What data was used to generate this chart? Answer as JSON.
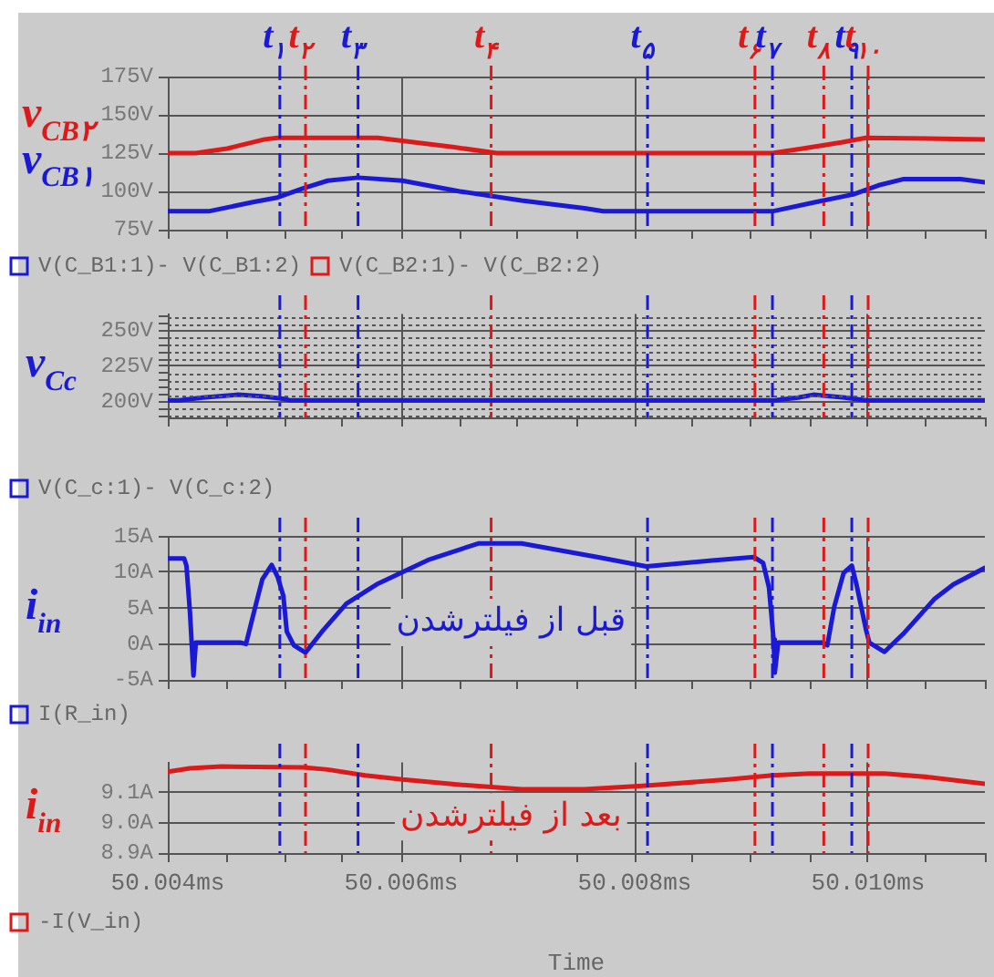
{
  "chart_data": [
    {
      "type": "line",
      "annotations": [
        "v$_{CB۲}$",
        "v$_{CB۱}$"
      ],
      "xlim": [
        50.004,
        50.011
      ],
      "xticks": [
        {
          "value": 50.004,
          "label": null
        },
        {
          "value": 50.0045,
          "label": null
        },
        {
          "value": 50.005,
          "label": null
        },
        {
          "value": 50.0055,
          "label": null
        },
        {
          "value": 50.006,
          "label": null
        },
        {
          "value": 50.0065,
          "label": null
        },
        {
          "value": 50.007,
          "label": null
        },
        {
          "value": 50.0075,
          "label": null
        },
        {
          "value": 50.008,
          "label": null
        },
        {
          "value": 50.0085,
          "label": null
        },
        {
          "value": 50.009,
          "label": null
        },
        {
          "value": 50.0095,
          "label": null
        },
        {
          "value": 50.01,
          "label": null
        },
        {
          "value": 50.0105,
          "label": null
        },
        {
          "value": 50.011,
          "label": null
        }
      ],
      "ylim": [
        75,
        175
      ],
      "yticks": [
        {
          "value": 75,
          "label": "75V"
        },
        {
          "value": 100,
          "label": "100V"
        },
        {
          "value": 125,
          "label": "125V"
        },
        {
          "value": 150,
          "label": "150V"
        },
        {
          "value": 175,
          "label": "175V"
        }
      ],
      "grid": true,
      "legend": "bottom",
      "tick_labels": "y",
      "series": [
        {
          "name": "V(C_B1:1)- V(C_B1:2)",
          "color": "#1a1ad6",
          "x": [
            50.004,
            50.00435,
            50.00473,
            50.00494,
            50.00516,
            50.00537,
            50.00563,
            50.00601,
            50.0065,
            50.00703,
            50.00757,
            50.00773,
            50.00918,
            50.00955,
            50.00987,
            50.01009,
            50.0103,
            50.01079,
            50.011
          ],
          "values": [
            87,
            87,
            93,
            96,
            102,
            107,
            109,
            107,
            100,
            94,
            89,
            87,
            87,
            93,
            98,
            104,
            108,
            108,
            106
          ]
        },
        {
          "name": "V(C_B2:1)- V(C_B2:2)",
          "color": "#dd1a1a",
          "x": [
            50.004,
            50.00424,
            50.00451,
            50.00483,
            50.00494,
            50.0058,
            50.00612,
            50.00644,
            50.00682,
            50.00918,
            50.00944,
            50.00977,
            50.00998,
            50.011
          ],
          "values": [
            125,
            125,
            128,
            134,
            135,
            135,
            132,
            129,
            125,
            125,
            128,
            132,
            135,
            134
          ]
        }
      ],
      "ref_lines": [
        {
          "axis": "x",
          "value": 50.00496,
          "label": "t$_{۱}$",
          "color": "#1a1ad6",
          "line_style": "dashed"
        },
        {
          "axis": "x",
          "value": 50.00518,
          "label": "t$_{۲}$",
          "color": "#dd1a1a",
          "line_style": "dashed"
        },
        {
          "axis": "x",
          "value": 50.00563,
          "label": "t$_{۳}$",
          "color": "#1a1ad6",
          "line_style": "dashed"
        },
        {
          "axis": "x",
          "value": 50.00677,
          "label": "t$_{۴}$",
          "color": "#dd1a1a",
          "line_style": "dashed"
        },
        {
          "axis": "x",
          "value": 50.00811,
          "label": "t$_{۵}$",
          "color": "#1a1ad6",
          "line_style": "dashed"
        },
        {
          "axis": "x",
          "value": 50.00903,
          "label": "t$_{۶}$",
          "color": "#dd1a1a",
          "line_style": "dashed"
        },
        {
          "axis": "x",
          "value": 50.00918,
          "label": "t$_{۷}$",
          "color": "#1a1ad6",
          "line_style": "dashed"
        },
        {
          "axis": "x",
          "value": 50.00962,
          "label": "t$_{۸}$",
          "color": "#dd1a1a",
          "line_style": "dashed"
        },
        {
          "axis": "x",
          "value": 50.00986,
          "label": "t$_{۹}$",
          "color": "#1a1ad6",
          "line_style": "dashed"
        },
        {
          "axis": "x",
          "value": 50.01,
          "label": "t$_{۱۰}$",
          "color": "#dd1a1a",
          "line_style": "dashed"
        }
      ]
    },
    {
      "type": "line",
      "ylabel": "v$_{Cc}$",
      "xlim": [
        50.004,
        50.011
      ],
      "xticks": [
        {
          "value": 50.004,
          "label": null
        },
        {
          "value": 50.0045,
          "label": null
        },
        {
          "value": 50.005,
          "label": null
        },
        {
          "value": 50.0055,
          "label": null
        },
        {
          "value": 50.006,
          "label": null
        },
        {
          "value": 50.0065,
          "label": null
        },
        {
          "value": 50.007,
          "label": null
        },
        {
          "value": 50.0075,
          "label": null
        },
        {
          "value": 50.008,
          "label": null
        },
        {
          "value": 50.0085,
          "label": null
        },
        {
          "value": 50.009,
          "label": null
        },
        {
          "value": 50.0095,
          "label": null
        },
        {
          "value": 50.01,
          "label": null
        },
        {
          "value": 50.0105,
          "label": null
        },
        {
          "value": 50.011,
          "label": null
        }
      ],
      "ylim": [
        189,
        262
      ],
      "yticks": [
        {
          "value": 190,
          "label": null
        },
        {
          "value": 195,
          "label": null
        },
        {
          "value": 200,
          "label": "200V"
        },
        {
          "value": 205,
          "label": null
        },
        {
          "value": 210,
          "label": null
        },
        {
          "value": 215,
          "label": null
        },
        {
          "value": 220,
          "label": null
        },
        {
          "value": 225,
          "label": "225V"
        },
        {
          "value": 230,
          "label": null
        },
        {
          "value": 235,
          "label": null
        },
        {
          "value": 240,
          "label": null
        },
        {
          "value": 245,
          "label": null
        },
        {
          "value": 250,
          "label": "250V"
        },
        {
          "value": 255,
          "label": null
        },
        {
          "value": 260,
          "label": null
        }
      ],
      "grid": true,
      "legend": "bottom",
      "tick_labels": "y",
      "series": [
        {
          "name": "V(C_c:1)- V(C_c:2)",
          "color": "#1a1ad6",
          "x": [
            50.004,
            50.0041,
            50.0043,
            50.0046,
            50.0048,
            50.005,
            50.00505,
            50.0092,
            50.0094,
            50.00953,
            50.0098,
            50.00998,
            50.011
          ],
          "values": [
            201,
            201,
            203,
            205,
            204,
            202,
            201,
            201,
            203,
            205,
            203,
            201,
            201
          ]
        }
      ],
      "ref_lines": [
        {
          "axis": "x",
          "value": 50.00496,
          "color": "#1a1ad6",
          "line_style": "dashed"
        },
        {
          "axis": "x",
          "value": 50.00518,
          "color": "#dd1a1a",
          "line_style": "dashed"
        },
        {
          "axis": "x",
          "value": 50.00563,
          "color": "#1a1ad6",
          "line_style": "dashed"
        },
        {
          "axis": "x",
          "value": 50.00677,
          "color": "#dd1a1a",
          "line_style": "dashed"
        },
        {
          "axis": "x",
          "value": 50.00811,
          "color": "#1a1ad6",
          "line_style": "dashed"
        },
        {
          "axis": "x",
          "value": 50.00903,
          "color": "#dd1a1a",
          "line_style": "dashed"
        },
        {
          "axis": "x",
          "value": 50.00918,
          "color": "#1a1ad6",
          "line_style": "dashed"
        },
        {
          "axis": "x",
          "value": 50.00962,
          "color": "#dd1a1a",
          "line_style": "dashed"
        },
        {
          "axis": "x",
          "value": 50.00986,
          "color": "#1a1ad6",
          "line_style": "dashed"
        },
        {
          "axis": "x",
          "value": 50.01,
          "color": "#dd1a1a",
          "line_style": "dashed"
        }
      ]
    },
    {
      "type": "line",
      "ylabel": "i$_{in}$",
      "annotations": [
        "قبل از فیلترشدن"
      ],
      "xlim": [
        50.004,
        50.011
      ],
      "xticks": [
        {
          "value": 50.004,
          "label": null
        },
        {
          "value": 50.0045,
          "label": null
        },
        {
          "value": 50.005,
          "label": null
        },
        {
          "value": 50.0055,
          "label": null
        },
        {
          "value": 50.006,
          "label": null
        },
        {
          "value": 50.0065,
          "label": null
        },
        {
          "value": 50.007,
          "label": null
        },
        {
          "value": 50.0075,
          "label": null
        },
        {
          "value": 50.008,
          "label": null
        },
        {
          "value": 50.0085,
          "label": null
        },
        {
          "value": 50.009,
          "label": null
        },
        {
          "value": 50.0095,
          "label": null
        },
        {
          "value": 50.01,
          "label": null
        },
        {
          "value": 50.0105,
          "label": null
        },
        {
          "value": 50.011,
          "label": null
        }
      ],
      "ylim": [
        -5,
        15
      ],
      "yticks": [
        {
          "value": -5,
          "label": "-5A"
        },
        {
          "value": 0,
          "label": "0A"
        },
        {
          "value": 5,
          "label": "5A"
        },
        {
          "value": 10,
          "label": "10A"
        },
        {
          "value": 15,
          "label": "15A"
        }
      ],
      "grid": true,
      "legend": "bottom",
      "tick_labels": "y",
      "series": [
        {
          "name": "I(R_in)",
          "color": "#1a1ad6",
          "x": [
            50.004,
            50.00414,
            50.00416,
            50.00419,
            50.00422,
            50.00424,
            50.00462,
            50.00467,
            50.00475,
            50.00481,
            50.00489,
            50.00494,
            50.00499,
            50.00502,
            50.00508,
            50.00518,
            50.00532,
            50.00553,
            50.0058,
            50.00623,
            50.00666,
            50.00703,
            50.00768,
            50.0081,
            50.00864,
            50.00902,
            50.0091,
            50.00915,
            50.00919,
            50.0092,
            50.00923,
            50.00961,
            50.00965,
            50.00971,
            50.00979,
            50.00986,
            50.0099,
            50.00998,
            50.01001,
            50.01014,
            50.0103,
            50.01057,
            50.01073,
            50.011
          ],
          "values": [
            11.9,
            11.9,
            10.9,
            4.4,
            -4.4,
            0.2,
            0.2,
            0,
            5.2,
            9,
            11,
            9.4,
            6.7,
            1.7,
            -0.2,
            -1.2,
            1.7,
            5.6,
            8.4,
            11.7,
            14,
            14,
            12.1,
            10.8,
            11.6,
            12.1,
            11.3,
            7.9,
            0.6,
            -4,
            0.2,
            0.2,
            -0.2,
            5.2,
            9.9,
            10.9,
            8.3,
            2.1,
            0.2,
            -1.1,
            1.4,
            6.3,
            8.3,
            10.6
          ]
        }
      ],
      "ref_lines": [
        {
          "axis": "x",
          "value": 50.00496,
          "color": "#1a1ad6",
          "line_style": "dashed"
        },
        {
          "axis": "x",
          "value": 50.00518,
          "color": "#dd1a1a",
          "line_style": "dashed"
        },
        {
          "axis": "x",
          "value": 50.00563,
          "color": "#1a1ad6",
          "line_style": "dashed"
        },
        {
          "axis": "x",
          "value": 50.00677,
          "color": "#dd1a1a",
          "line_style": "dashed"
        },
        {
          "axis": "x",
          "value": 50.00811,
          "color": "#1a1ad6",
          "line_style": "dashed"
        },
        {
          "axis": "x",
          "value": 50.00903,
          "color": "#dd1a1a",
          "line_style": "dashed"
        },
        {
          "axis": "x",
          "value": 50.00918,
          "color": "#1a1ad6",
          "line_style": "dashed"
        },
        {
          "axis": "x",
          "value": 50.00962,
          "color": "#dd1a1a",
          "line_style": "dashed"
        },
        {
          "axis": "x",
          "value": 50.00986,
          "color": "#1a1ad6",
          "line_style": "dashed"
        },
        {
          "axis": "x",
          "value": 50.01,
          "color": "#dd1a1a",
          "line_style": "dashed"
        }
      ]
    },
    {
      "type": "line",
      "ylabel": "i$_{in}$",
      "xlabel": "Time",
      "annotations": [
        "بعد از فیلترشدن"
      ],
      "xlim": [
        50.004,
        50.011
      ],
      "xticks": [
        {
          "value": 50.004,
          "label": "50.004ms"
        },
        {
          "value": 50.0045,
          "label": null
        },
        {
          "value": 50.005,
          "label": null
        },
        {
          "value": 50.0055,
          "label": null
        },
        {
          "value": 50.006,
          "label": "50.006ms"
        },
        {
          "value": 50.0065,
          "label": null
        },
        {
          "value": 50.007,
          "label": null
        },
        {
          "value": 50.0075,
          "label": null
        },
        {
          "value": 50.008,
          "label": "50.008ms"
        },
        {
          "value": 50.0085,
          "label": null
        },
        {
          "value": 50.009,
          "label": null
        },
        {
          "value": 50.0095,
          "label": null
        },
        {
          "value": 50.01,
          "label": "50.010ms"
        },
        {
          "value": 50.0105,
          "label": null
        },
        {
          "value": 50.011,
          "label": null
        }
      ],
      "ylim": [
        8.9,
        9.2
      ],
      "yticks": [
        {
          "value": 8.9,
          "label": "8.9A"
        },
        {
          "value": 9.0,
          "label": "9.0A"
        },
        {
          "value": 9.1,
          "label": "9.1A"
        }
      ],
      "grid": true,
      "legend": "bottom",
      "series": [
        {
          "name": "-I(V_in)",
          "color": "#dd1a1a",
          "x": [
            50.004,
            50.00419,
            50.00446,
            50.00516,
            50.00537,
            50.00569,
            50.00601,
            50.0065,
            50.00703,
            50.00757,
            50.0081,
            50.0088,
            50.00918,
            50.0095,
            50.01014,
            50.01052,
            50.011
          ],
          "values": [
            9.169,
            9.18,
            9.186,
            9.183,
            9.176,
            9.157,
            9.143,
            9.126,
            9.111,
            9.111,
            9.123,
            9.143,
            9.157,
            9.163,
            9.163,
            9.151,
            9.129
          ]
        }
      ],
      "ref_lines": [
        {
          "axis": "x",
          "value": 50.00496,
          "color": "#1a1ad6",
          "line_style": "dashed"
        },
        {
          "axis": "x",
          "value": 50.00518,
          "color": "#dd1a1a",
          "line_style": "dashed"
        },
        {
          "axis": "x",
          "value": 50.00563,
          "color": "#1a1ad6",
          "line_style": "dashed"
        },
        {
          "axis": "x",
          "value": 50.00677,
          "color": "#dd1a1a",
          "line_style": "dashed"
        },
        {
          "axis": "x",
          "value": 50.00811,
          "color": "#1a1ad6",
          "line_style": "dashed"
        },
        {
          "axis": "x",
          "value": 50.00903,
          "color": "#dd1a1a",
          "line_style": "dashed"
        },
        {
          "axis": "x",
          "value": 50.00918,
          "color": "#1a1ad6",
          "line_style": "dashed"
        },
        {
          "axis": "x",
          "value": 50.00962,
          "color": "#dd1a1a",
          "line_style": "dashed"
        },
        {
          "axis": "x",
          "value": 50.00986,
          "color": "#1a1ad6",
          "line_style": "dashed"
        },
        {
          "axis": "x",
          "value": 50.01,
          "color": "#dd1a1a",
          "line_style": "dashed"
        }
      ]
    }
  ]
}
